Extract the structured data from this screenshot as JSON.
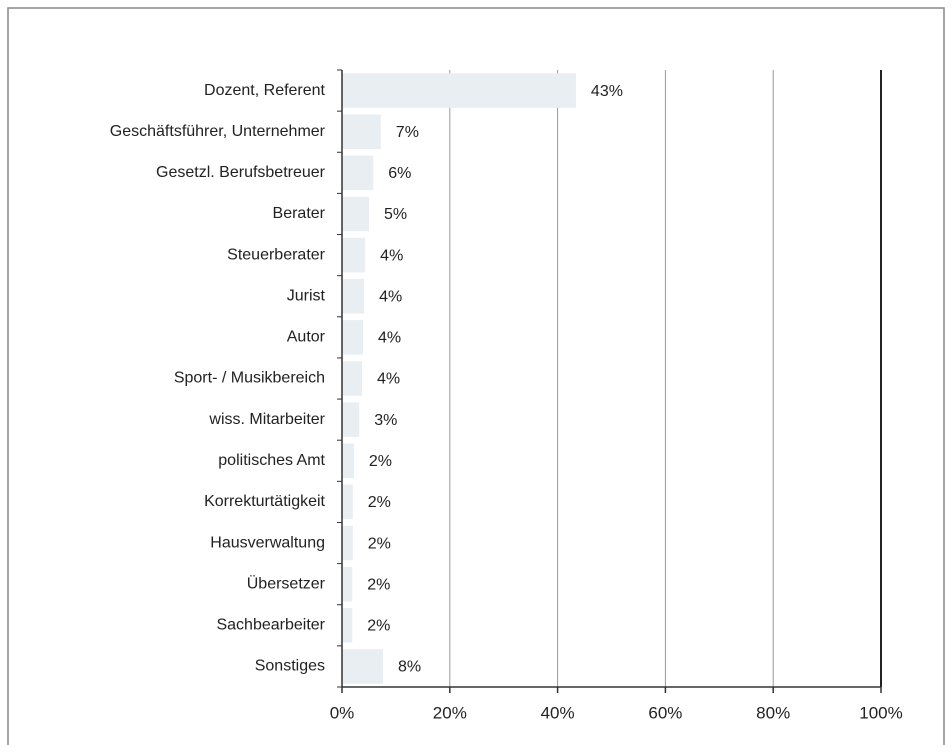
{
  "chart_data": {
    "type": "bar",
    "orientation": "horizontal",
    "categories": [
      "Dozent, Referent",
      "Geschäftsführer, Unternehmer",
      "Gesetzl. Berufsbetreuer",
      "Berater",
      "Steuerberater",
      "Jurist",
      "Autor",
      "Sport- / Musikbereich",
      "wiss. Mitarbeiter",
      "politisches Amt",
      "Korrekturtätigkeit",
      "Hausverwaltung",
      "Übersetzer",
      "Sachbearbeiter",
      "Sonstiges"
    ],
    "values": [
      43.4,
      7.2,
      5.8,
      5.0,
      4.3,
      4.1,
      3.9,
      3.7,
      3.2,
      2.2,
      2.0,
      2.0,
      1.9,
      1.9,
      7.6
    ],
    "value_labels": [
      "43%",
      "7%",
      "6%",
      "5%",
      "4%",
      "4%",
      "4%",
      "4%",
      "3%",
      "2%",
      "2%",
      "2%",
      "2%",
      "2%",
      "8%"
    ],
    "color": "#e9eef2",
    "xlim": [
      0,
      100
    ],
    "xticks": [
      {
        "value": 0,
        "label": "0%"
      },
      {
        "value": 20,
        "label": "20%"
      },
      {
        "value": 40,
        "label": "40%"
      },
      {
        "value": 60,
        "label": "60%"
      },
      {
        "value": 80,
        "label": "80%"
      },
      {
        "value": 100,
        "label": "100%"
      }
    ],
    "grid": true
  }
}
